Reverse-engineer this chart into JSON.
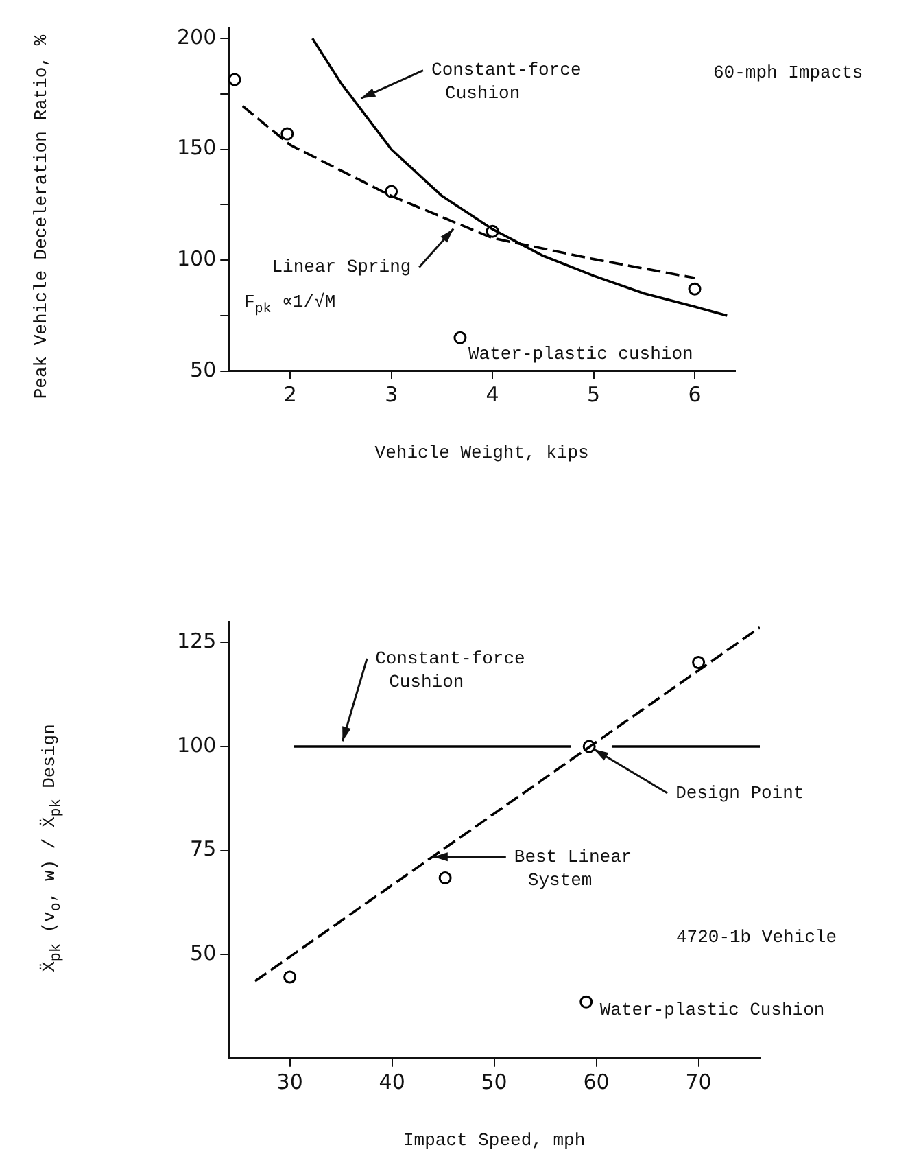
{
  "chart_data": [
    {
      "type": "line",
      "xlabel": "Vehicle Weight, kips",
      "ylabel": "Peak Vehicle Deceleration Ratio, %",
      "xlim": [
        1.39,
        6.4
      ],
      "ylim": [
        50,
        205
      ],
      "xticks": [
        2,
        3,
        4,
        5,
        6
      ],
      "yticks": [
        50,
        {
          "value": 75,
          "label": null
        },
        100,
        {
          "value": 125,
          "label": null
        },
        150,
        {
          "value": 175,
          "label": null
        },
        200
      ],
      "grid": false,
      "legend": false,
      "series": [
        {
          "type": "line",
          "color": "#000000",
          "x": [
            2.22,
            2.5,
            3,
            3.5,
            4,
            4.5,
            5,
            5.5,
            6,
            6.32
          ],
          "values": [
            200,
            180,
            150,
            129,
            114,
            102,
            93,
            85,
            79,
            75
          ]
        },
        {
          "type": "line",
          "line_style": "dashed",
          "color": "#000000",
          "x": [
            1.53,
            2,
            3,
            4,
            5,
            6
          ],
          "values": [
            169.5,
            152,
            129,
            110,
            100.5,
            92
          ]
        },
        {
          "type": "scatter",
          "marker": "circle",
          "color": "#000000",
          "x": [
            1.45,
            1.97,
            3,
            4,
            6,
            3.68
          ],
          "values": [
            181.5,
            157,
            131,
            113,
            87,
            65
          ]
        }
      ],
      "annotations": [
        {
          "text": "Constant-force Cushion",
          "x": 2.65,
          "y": 172
        },
        "60-mph Impacts",
        {
          "text": "Linear Spring",
          "x": 3.65,
          "y": 116
        },
        "F$_{pk}$ ∝1/√M",
        {
          "text": "Water-plastic cushion",
          "x": 3.68,
          "y": 65
        }
      ]
    },
    {
      "type": "line",
      "xlabel": "Impact Speed, mph",
      "ylabel": "Ẍ$_{pk}$ (v$_{o}$, w) / Ẍ$_{pk}$ Design",
      "xlim": [
        24,
        76
      ],
      "ylim": [
        25,
        130
      ],
      "xticks": [
        30,
        40,
        50,
        60,
        70
      ],
      "yticks": [
        50,
        75,
        100,
        125
      ],
      "grid": false,
      "legend": false,
      "series": [
        {
          "type": "line",
          "color": "#000000",
          "x": [
            30.4,
            57.5,
            59.3,
            61.5,
            76
          ],
          "values": [
            100,
            100,
            null,
            100,
            100
          ]
        },
        {
          "type": "line",
          "line_style": "dashed",
          "color": "#000000",
          "x": [
            26.6,
            76
          ],
          "values": [
            43.6,
            128.6
          ]
        },
        {
          "type": "scatter",
          "marker": "circle",
          "color": "#000000",
          "x": [
            30,
            45.2,
            59,
            70,
            59.3
          ],
          "values": [
            44.6,
            68.4,
            38.6,
            120.2,
            100
          ]
        }
      ],
      "annotations": [
        {
          "text": "Constant-force Cushion",
          "x": 35,
          "y": 100
        },
        {
          "text": "Design Point",
          "x": 59.3,
          "y": 100
        },
        {
          "text": "Best Linear System",
          "x": 43.5,
          "y": 73.5
        },
        "4720-1b Vehicle",
        {
          "text": "Water-plastic Cushion",
          "x": 59,
          "y": 38.6
        }
      ]
    }
  ]
}
